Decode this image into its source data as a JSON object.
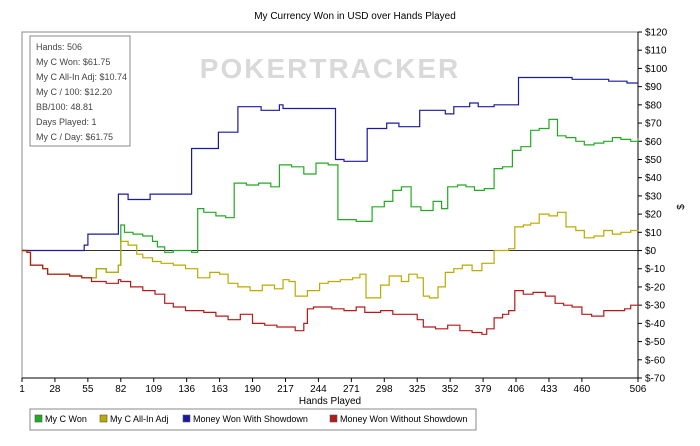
{
  "chart_data": {
    "type": "line",
    "title": "My Currency Won in USD over Hands Played",
    "xlabel": "Hands Played",
    "ylabel": "$",
    "xlim": [
      1,
      506
    ],
    "ylim": [
      -70,
      120
    ],
    "x_ticks": [
      "1",
      "28",
      "55",
      "82",
      "109",
      "136",
      "163",
      "190",
      "217",
      "244",
      "271",
      "298",
      "325",
      "352",
      "379",
      "406",
      "433",
      "460",
      "506"
    ],
    "y_ticks": [
      "$120",
      "$110",
      "$100",
      "$90",
      "$80",
      "$70",
      "$60",
      "$50",
      "$40",
      "$30",
      "$20",
      "$10",
      "$0",
      "$-10",
      "$-20",
      "$-30",
      "$-40",
      "$-50",
      "$-60",
      "$-70"
    ],
    "grid": false,
    "legend_position": "bottom",
    "watermark": "POKERTRACKER",
    "stats": [
      "Hands: 506",
      "My C Won: $61.75",
      "My C All-In Adj: $10.74",
      "My C / 100: $12.20",
      "BB/100: 48.81",
      "Days Played: 1",
      "My C / Day: $61.75"
    ],
    "series": [
      {
        "name": "My C Won",
        "color": "#22aa22",
        "points": [
          [
            1,
            0
          ],
          [
            5,
            -1
          ],
          [
            8,
            -8
          ],
          [
            18,
            -10
          ],
          [
            22,
            -13
          ],
          [
            40,
            -14
          ],
          [
            50,
            -15
          ],
          [
            58,
            -15
          ],
          [
            62,
            -10
          ],
          [
            70,
            -12
          ],
          [
            80,
            -8
          ],
          [
            82,
            14
          ],
          [
            85,
            10
          ],
          [
            92,
            9
          ],
          [
            100,
            8
          ],
          [
            108,
            5
          ],
          [
            112,
            2
          ],
          [
            118,
            -1
          ],
          [
            125,
            0
          ],
          [
            135,
            0
          ],
          [
            140,
            -1
          ],
          [
            145,
            23
          ],
          [
            150,
            21
          ],
          [
            160,
            19
          ],
          [
            168,
            18
          ],
          [
            175,
            37
          ],
          [
            185,
            36
          ],
          [
            195,
            37
          ],
          [
            205,
            35
          ],
          [
            212,
            47
          ],
          [
            222,
            46
          ],
          [
            232,
            42
          ],
          [
            242,
            48
          ],
          [
            252,
            47
          ],
          [
            260,
            17
          ],
          [
            275,
            16
          ],
          [
            288,
            24
          ],
          [
            298,
            27
          ],
          [
            305,
            33
          ],
          [
            312,
            35
          ],
          [
            320,
            24
          ],
          [
            328,
            22
          ],
          [
            338,
            27
          ],
          [
            345,
            23
          ],
          [
            350,
            35
          ],
          [
            358,
            36
          ],
          [
            365,
            35
          ],
          [
            372,
            33
          ],
          [
            380,
            34
          ],
          [
            388,
            45
          ],
          [
            395,
            46
          ],
          [
            403,
            55
          ],
          [
            410,
            57
          ],
          [
            418,
            66
          ],
          [
            425,
            67
          ],
          [
            433,
            72
          ],
          [
            440,
            63
          ],
          [
            447,
            62
          ],
          [
            455,
            60
          ],
          [
            462,
            58
          ],
          [
            470,
            59
          ],
          [
            478,
            60
          ],
          [
            485,
            62
          ],
          [
            492,
            61
          ],
          [
            500,
            60
          ],
          [
            506,
            61.75
          ]
        ]
      },
      {
        "name": "My C All-In Adj",
        "color": "#bbaa00",
        "points": [
          [
            1,
            0
          ],
          [
            5,
            -1
          ],
          [
            8,
            -8
          ],
          [
            18,
            -10
          ],
          [
            22,
            -13
          ],
          [
            40,
            -14
          ],
          [
            50,
            -15
          ],
          [
            58,
            -15
          ],
          [
            62,
            -10
          ],
          [
            70,
            -12
          ],
          [
            80,
            -8
          ],
          [
            82,
            5
          ],
          [
            88,
            3
          ],
          [
            95,
            -2
          ],
          [
            100,
            -4
          ],
          [
            108,
            -6
          ],
          [
            115,
            -7
          ],
          [
            125,
            -8
          ],
          [
            135,
            -10
          ],
          [
            145,
            -15
          ],
          [
            155,
            -12
          ],
          [
            163,
            -13
          ],
          [
            170,
            -18
          ],
          [
            178,
            -20
          ],
          [
            188,
            -22
          ],
          [
            198,
            -19
          ],
          [
            208,
            -21
          ],
          [
            215,
            -16
          ],
          [
            220,
            -17
          ],
          [
            225,
            -25
          ],
          [
            235,
            -22
          ],
          [
            245,
            -18
          ],
          [
            252,
            -17
          ],
          [
            262,
            -16
          ],
          [
            272,
            -15
          ],
          [
            278,
            -13
          ],
          [
            283,
            -26
          ],
          [
            295,
            -19
          ],
          [
            302,
            -14
          ],
          [
            312,
            -17
          ],
          [
            318,
            -13
          ],
          [
            325,
            -15
          ],
          [
            330,
            -25
          ],
          [
            335,
            -26
          ],
          [
            342,
            -20
          ],
          [
            348,
            -12
          ],
          [
            355,
            -10
          ],
          [
            362,
            -8
          ],
          [
            370,
            -11
          ],
          [
            378,
            -7
          ],
          [
            388,
            0
          ],
          [
            400,
            1
          ],
          [
            405,
            13
          ],
          [
            412,
            14
          ],
          [
            418,
            15
          ],
          [
            425,
            20
          ],
          [
            433,
            19
          ],
          [
            440,
            21
          ],
          [
            447,
            13
          ],
          [
            455,
            11
          ],
          [
            462,
            7
          ],
          [
            470,
            8
          ],
          [
            478,
            11
          ],
          [
            485,
            9
          ],
          [
            492,
            10
          ],
          [
            500,
            11
          ],
          [
            506,
            10.74
          ]
        ]
      },
      {
        "name": "Money Won With Showdown",
        "color": "#1a1aa0",
        "points": [
          [
            1,
            0
          ],
          [
            50,
            0
          ],
          [
            52,
            3
          ],
          [
            55,
            9
          ],
          [
            78,
            9
          ],
          [
            80,
            31
          ],
          [
            86,
            31
          ],
          [
            88,
            28
          ],
          [
            105,
            28
          ],
          [
            106,
            31
          ],
          [
            138,
            31
          ],
          [
            140,
            56
          ],
          [
            160,
            56
          ],
          [
            162,
            65
          ],
          [
            175,
            65
          ],
          [
            178,
            79
          ],
          [
            195,
            79
          ],
          [
            197,
            77
          ],
          [
            210,
            77
          ],
          [
            212,
            80
          ],
          [
            215,
            78
          ],
          [
            245,
            78
          ],
          [
            255,
            78
          ],
          [
            258,
            50
          ],
          [
            265,
            49
          ],
          [
            281,
            49
          ],
          [
            284,
            67
          ],
          [
            298,
            67
          ],
          [
            300,
            70
          ],
          [
            310,
            68
          ],
          [
            325,
            68
          ],
          [
            327,
            77
          ],
          [
            345,
            77
          ],
          [
            348,
            75
          ],
          [
            352,
            75
          ],
          [
            355,
            79
          ],
          [
            365,
            79
          ],
          [
            368,
            81
          ],
          [
            375,
            79
          ],
          [
            385,
            79
          ],
          [
            388,
            80
          ],
          [
            405,
            80
          ],
          [
            408,
            95
          ],
          [
            430,
            95
          ],
          [
            432,
            95
          ],
          [
            450,
            95
          ],
          [
            452,
            94
          ],
          [
            480,
            94
          ],
          [
            482,
            93
          ],
          [
            495,
            93
          ],
          [
            497,
            92
          ],
          [
            506,
            92
          ]
        ]
      },
      {
        "name": "Money Won Without Showdown",
        "color": "#b51a1a",
        "points": [
          [
            1,
            0
          ],
          [
            5,
            -1
          ],
          [
            8,
            -8
          ],
          [
            18,
            -10
          ],
          [
            22,
            -13
          ],
          [
            40,
            -14
          ],
          [
            50,
            -15
          ],
          [
            58,
            -17
          ],
          [
            70,
            -18
          ],
          [
            80,
            -16
          ],
          [
            82,
            -17
          ],
          [
            90,
            -20
          ],
          [
            100,
            -22
          ],
          [
            110,
            -24
          ],
          [
            118,
            -29
          ],
          [
            125,
            -31
          ],
          [
            135,
            -33
          ],
          [
            150,
            -34
          ],
          [
            160,
            -36
          ],
          [
            170,
            -38
          ],
          [
            180,
            -35
          ],
          [
            190,
            -40
          ],
          [
            200,
            -41
          ],
          [
            210,
            -42
          ],
          [
            225,
            -44
          ],
          [
            232,
            -40
          ],
          [
            235,
            -32
          ],
          [
            240,
            -31
          ],
          [
            255,
            -32
          ],
          [
            265,
            -33
          ],
          [
            275,
            -31
          ],
          [
            282,
            -34
          ],
          [
            295,
            -33
          ],
          [
            305,
            -35
          ],
          [
            315,
            -35
          ],
          [
            325,
            -38
          ],
          [
            330,
            -42
          ],
          [
            340,
            -43
          ],
          [
            350,
            -41
          ],
          [
            360,
            -44
          ],
          [
            370,
            -45
          ],
          [
            378,
            -46
          ],
          [
            382,
            -43
          ],
          [
            388,
            -37
          ],
          [
            395,
            -35
          ],
          [
            400,
            -33
          ],
          [
            405,
            -22
          ],
          [
            412,
            -24
          ],
          [
            420,
            -23
          ],
          [
            430,
            -25
          ],
          [
            438,
            -29
          ],
          [
            445,
            -30
          ],
          [
            452,
            -31
          ],
          [
            460,
            -35
          ],
          [
            468,
            -36
          ],
          [
            478,
            -33
          ],
          [
            485,
            -33
          ],
          [
            495,
            -32
          ],
          [
            500,
            -30
          ],
          [
            506,
            -31
          ]
        ]
      }
    ]
  }
}
